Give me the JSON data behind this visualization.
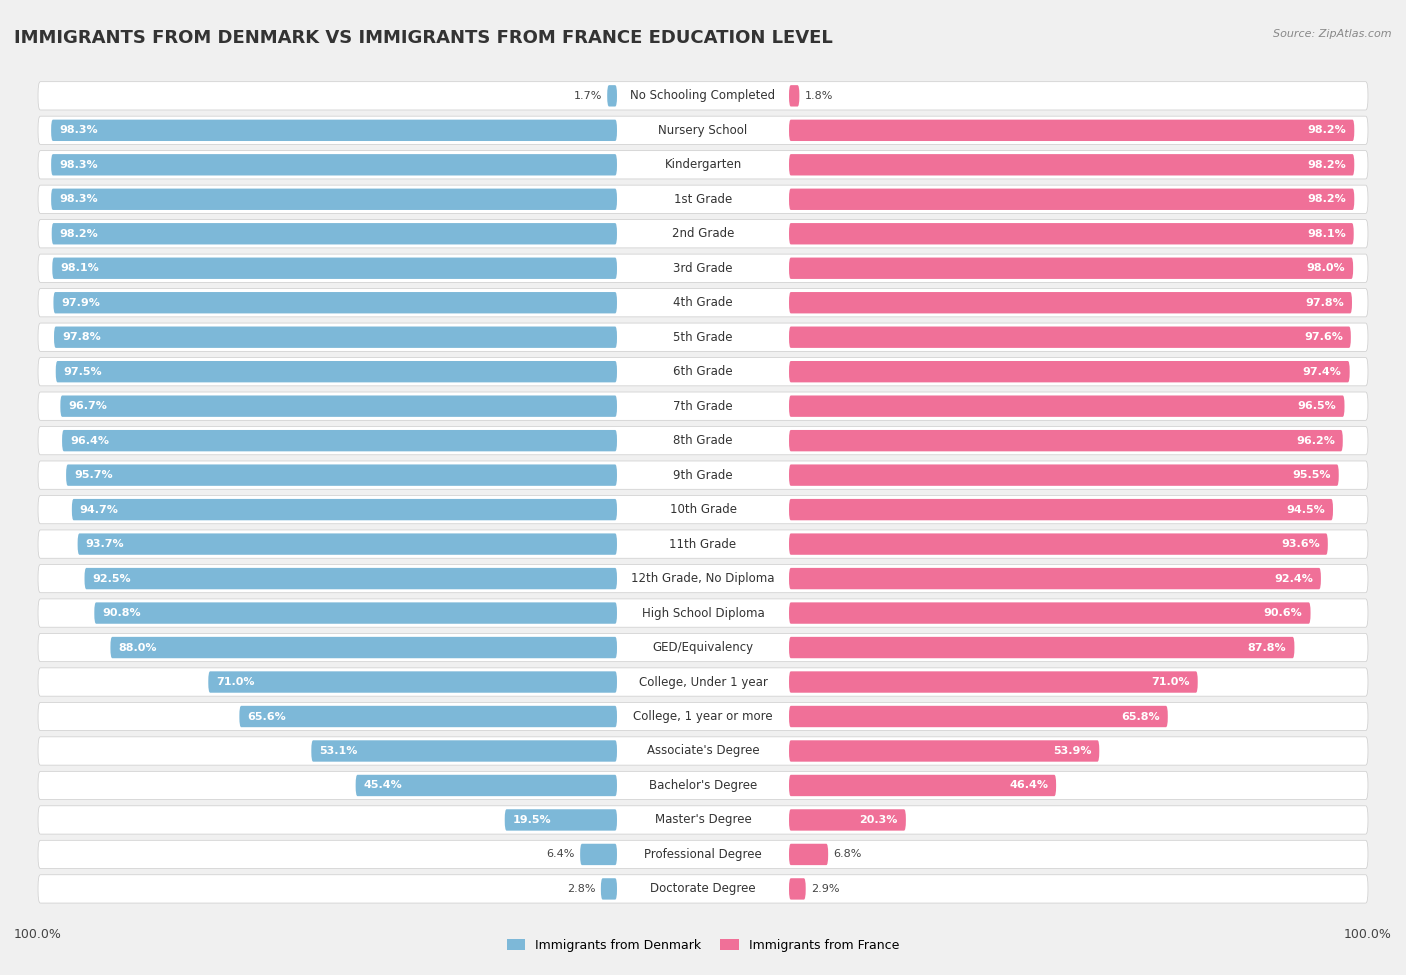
{
  "title": "IMMIGRANTS FROM DENMARK VS IMMIGRANTS FROM FRANCE EDUCATION LEVEL",
  "source": "Source: ZipAtlas.com",
  "categories": [
    "No Schooling Completed",
    "Nursery School",
    "Kindergarten",
    "1st Grade",
    "2nd Grade",
    "3rd Grade",
    "4th Grade",
    "5th Grade",
    "6th Grade",
    "7th Grade",
    "8th Grade",
    "9th Grade",
    "10th Grade",
    "11th Grade",
    "12th Grade, No Diploma",
    "High School Diploma",
    "GED/Equivalency",
    "College, Under 1 year",
    "College, 1 year or more",
    "Associate's Degree",
    "Bachelor's Degree",
    "Master's Degree",
    "Professional Degree",
    "Doctorate Degree"
  ],
  "denmark_values": [
    1.7,
    98.3,
    98.3,
    98.3,
    98.2,
    98.1,
    97.9,
    97.8,
    97.5,
    96.7,
    96.4,
    95.7,
    94.7,
    93.7,
    92.5,
    90.8,
    88.0,
    71.0,
    65.6,
    53.1,
    45.4,
    19.5,
    6.4,
    2.8
  ],
  "france_values": [
    1.8,
    98.2,
    98.2,
    98.2,
    98.1,
    98.0,
    97.8,
    97.6,
    97.4,
    96.5,
    96.2,
    95.5,
    94.5,
    93.6,
    92.4,
    90.6,
    87.8,
    71.0,
    65.8,
    53.9,
    46.4,
    20.3,
    6.8,
    2.9
  ],
  "denmark_color": "#7db8d8",
  "france_color": "#f07098",
  "background_color": "#f0f0f0",
  "bar_bg_color": "#e4e4e4",
  "row_bg_color": "#ffffff",
  "legend_denmark": "Immigrants from Denmark",
  "legend_france": "Immigrants from France",
  "title_fontsize": 13,
  "label_fontsize": 8.5,
  "value_fontsize": 8.0,
  "footer_fontsize": 9
}
